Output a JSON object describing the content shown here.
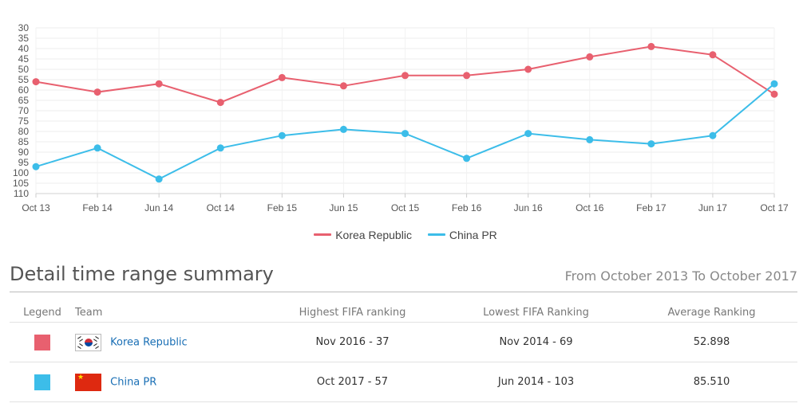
{
  "chart_data": {
    "type": "line",
    "categories": [
      "Oct 13",
      "Feb 14",
      "Jun 14",
      "Oct 14",
      "Feb 15",
      "Jun 15",
      "Oct 15",
      "Feb 16",
      "Jun 16",
      "Oct 16",
      "Feb 17",
      "Jun 17",
      "Oct 17"
    ],
    "y_ticks": [
      30,
      35,
      40,
      45,
      50,
      55,
      60,
      65,
      70,
      75,
      80,
      85,
      90,
      95,
      100,
      105,
      110
    ],
    "ylim": [
      30,
      110
    ],
    "y_reversed": true,
    "grid": true,
    "legend_position": "bottom",
    "series": [
      {
        "name": "Korea Republic",
        "color": "#e8606f",
        "values": [
          56,
          61,
          57,
          66,
          54,
          58,
          53,
          53,
          50,
          44,
          39,
          43,
          62
        ]
      },
      {
        "name": "China PR",
        "color": "#3cbde9",
        "values": [
          97,
          88,
          103,
          88,
          82,
          79,
          81,
          93,
          81,
          84,
          86,
          82,
          57
        ]
      }
    ]
  },
  "summary": {
    "title": "Detail time range summary",
    "range": "From October 2013 To October 2017",
    "headers": {
      "legend": "Legend",
      "team": "Team",
      "highest": "Highest FIFA ranking",
      "lowest": "Lowest FIFA Ranking",
      "average": "Average Ranking"
    },
    "rows": [
      {
        "color": "#e8606f",
        "team": "Korea Republic",
        "flag": "flag-korea-icon",
        "highest": "Nov 2016 - 37",
        "lowest": "Nov 2014 - 69",
        "average": "52.898"
      },
      {
        "color": "#3cbde9",
        "team": "China PR",
        "flag": "flag-china-icon",
        "highest": "Oct 2017 - 57",
        "lowest": "Jun 2014 - 103",
        "average": "85.510"
      }
    ]
  }
}
